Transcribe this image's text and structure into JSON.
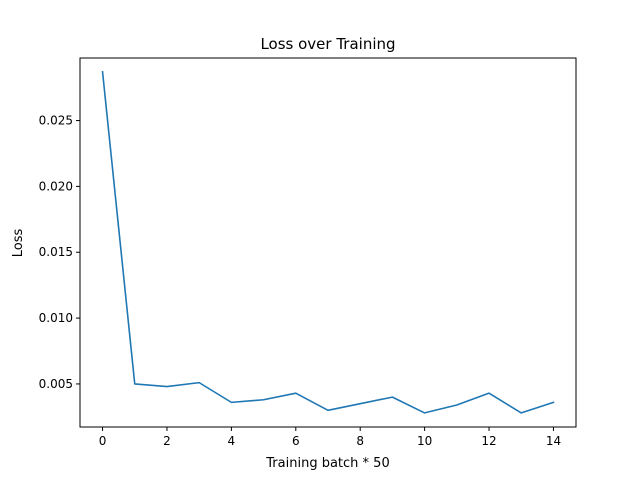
{
  "chart_data": {
    "type": "line",
    "title": "Loss over Training",
    "xlabel": "Training batch * 50",
    "ylabel": "Loss",
    "xlim": [
      -0.7,
      14.7
    ],
    "ylim": [
      0.00173,
      0.02975
    ],
    "x_ticks": [
      0,
      2,
      4,
      6,
      8,
      10,
      12,
      14
    ],
    "x_tick_labels": [
      "0",
      "2",
      "4",
      "6",
      "8",
      "10",
      "12",
      "14"
    ],
    "y_ticks": [
      0.005,
      0.01,
      0.015,
      0.02,
      0.025
    ],
    "y_tick_labels": [
      "0.005",
      "0.010",
      "0.015",
      "0.020",
      "0.025"
    ],
    "grid": false,
    "legend": "none",
    "series": [
      {
        "color": "#1f77b4",
        "x": [
          0,
          1,
          2,
          3,
          4,
          5,
          6,
          7,
          8,
          9,
          10,
          11,
          12,
          13,
          14
        ],
        "y": [
          0.0287,
          0.005,
          0.0048,
          0.0051,
          0.0036,
          0.0038,
          0.0043,
          0.003,
          0.0035,
          0.004,
          0.0028,
          0.0034,
          0.0043,
          0.0028,
          0.0036
        ]
      }
    ]
  }
}
